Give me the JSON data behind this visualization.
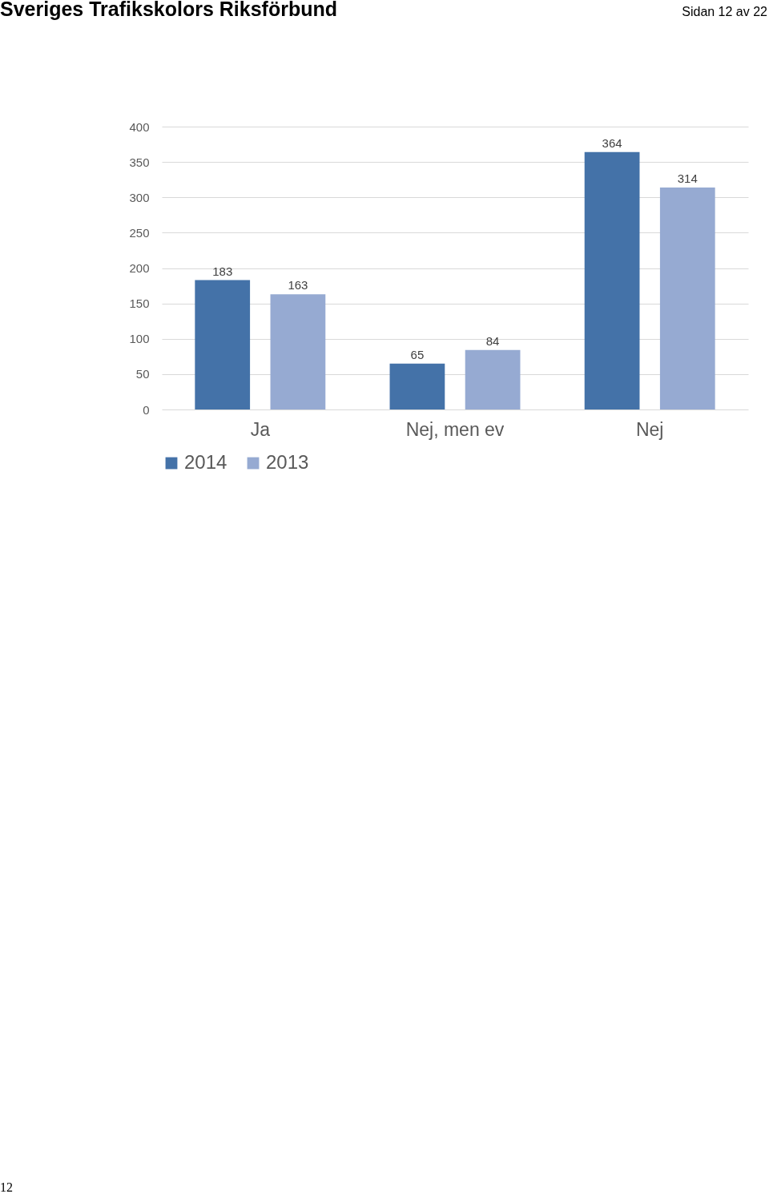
{
  "chart_data": {
    "type": "bar",
    "title": "Sveriges Trafikskolors Riksförbund",
    "annotations": [
      "Sidan 12 av 22",
      "12"
    ],
    "categories": [
      "Ja",
      "Nej, men ev",
      "Nej"
    ],
    "series": [
      {
        "name": "2014",
        "color": "#4472a8",
        "values": [
          183,
          65,
          364
        ]
      },
      {
        "name": "2013",
        "color": "#96aad2",
        "values": [
          163,
          84,
          314
        ]
      }
    ],
    "ylim": [
      0,
      400
    ],
    "yticks": [
      0,
      50,
      100,
      150,
      200,
      250,
      300,
      350,
      400
    ],
    "grid": "y",
    "legend": "bottom",
    "data_labels": true
  }
}
